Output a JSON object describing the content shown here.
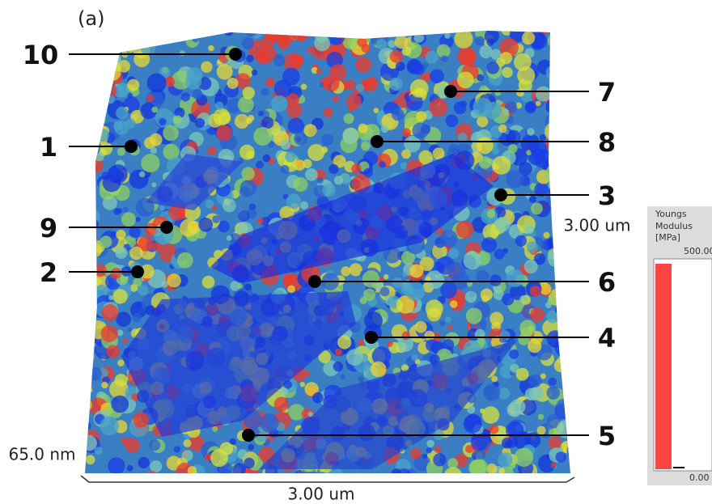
{
  "panel_label": "(a)",
  "points": [
    {
      "label": "10"
    },
    {
      "label": "7"
    },
    {
      "label": "1"
    },
    {
      "label": "8"
    },
    {
      "label": "3"
    },
    {
      "label": "9"
    },
    {
      "label": "2"
    },
    {
      "label": "6"
    },
    {
      "label": "4"
    },
    {
      "label": "5"
    }
  ],
  "scale": {
    "x_label": "3.00 um",
    "y_label": "3.00 um",
    "z_label": "65.0 nm"
  },
  "colorbar": {
    "title": [
      "Youngs",
      "Modulus",
      "[MPa]"
    ],
    "max_label": "500.00",
    "min_label": "0.00"
  }
}
